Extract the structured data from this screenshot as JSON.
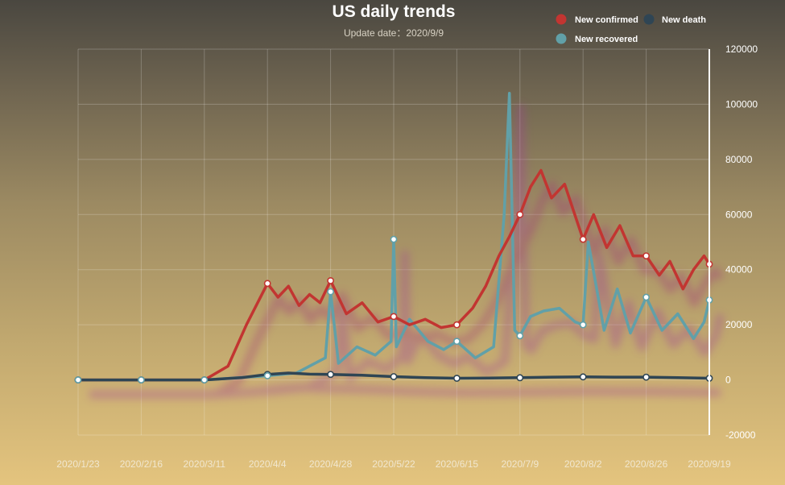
{
  "chart_data": {
    "type": "line",
    "title": "US daily trends",
    "subtitle": "Update date：2020/9/9",
    "x_tick_labels": [
      "2020/1/23",
      "2020/2/16",
      "2020/3/11",
      "2020/4/4",
      "2020/4/28",
      "2020/5/22",
      "2020/6/15",
      "2020/7/9",
      "2020/8/2",
      "2020/8/26",
      "2020/9/19"
    ],
    "y_tick_labels": [
      "120000",
      "100000",
      "80000",
      "60000",
      "40000",
      "20000",
      "0",
      "-20000"
    ],
    "ylim": [
      -20000,
      120000
    ],
    "y_axis_position": "right",
    "grid": true,
    "legend_position": "top-right",
    "series": [
      {
        "name": "New confirmed",
        "color": "#c23531",
        "x": [
          "2020-01-23",
          "2020-02-16",
          "2020-03-11",
          "2020-03-20",
          "2020-03-27",
          "2020-04-04",
          "2020-04-08",
          "2020-04-12",
          "2020-04-16",
          "2020-04-20",
          "2020-04-24",
          "2020-04-28",
          "2020-05-04",
          "2020-05-10",
          "2020-05-16",
          "2020-05-22",
          "2020-05-28",
          "2020-06-03",
          "2020-06-09",
          "2020-06-15",
          "2020-06-21",
          "2020-06-26",
          "2020-07-01",
          "2020-07-05",
          "2020-07-09",
          "2020-07-13",
          "2020-07-17",
          "2020-07-21",
          "2020-07-26",
          "2020-08-02",
          "2020-08-06",
          "2020-08-11",
          "2020-08-16",
          "2020-08-21",
          "2020-08-26",
          "2020-08-31",
          "2020-09-04",
          "2020-09-09",
          "2020-09-13",
          "2020-09-17",
          "2020-09-19"
        ],
        "values": [
          0,
          0,
          0,
          5000,
          20000,
          35000,
          30000,
          34000,
          27000,
          31000,
          28000,
          36000,
          24000,
          28000,
          21000,
          23000,
          20000,
          22000,
          19000,
          20000,
          26000,
          34000,
          45000,
          52000,
          60000,
          70000,
          76000,
          66000,
          71000,
          51000,
          60000,
          48000,
          56000,
          45000,
          45000,
          38000,
          43000,
          33000,
          40000,
          45000,
          42000
        ]
      },
      {
        "name": "New death",
        "color": "#2f4554",
        "x": [
          "2020-01-23",
          "2020-02-16",
          "2020-03-11",
          "2020-03-25",
          "2020-04-04",
          "2020-04-12",
          "2020-04-20",
          "2020-04-28",
          "2020-05-10",
          "2020-05-22",
          "2020-06-03",
          "2020-06-15",
          "2020-06-27",
          "2020-07-09",
          "2020-07-21",
          "2020-08-02",
          "2020-08-14",
          "2020-08-26",
          "2020-09-07",
          "2020-09-19"
        ],
        "values": [
          0,
          0,
          0,
          800,
          2000,
          2500,
          2100,
          2000,
          1700,
          1200,
          800,
          600,
          700,
          800,
          1000,
          1100,
          1000,
          1000,
          800,
          600
        ]
      },
      {
        "name": "New recovered",
        "color": "#61a0a8",
        "x": [
          "2020-01-23",
          "2020-02-16",
          "2020-03-11",
          "2020-03-27",
          "2020-04-04",
          "2020-04-15",
          "2020-04-26",
          "2020-04-28",
          "2020-05-01",
          "2020-05-08",
          "2020-05-15",
          "2020-05-21",
          "2020-05-22",
          "2020-05-23",
          "2020-05-28",
          "2020-06-04",
          "2020-06-10",
          "2020-06-15",
          "2020-06-22",
          "2020-06-29",
          "2020-07-03",
          "2020-07-05",
          "2020-07-07",
          "2020-07-09",
          "2020-07-13",
          "2020-07-18",
          "2020-07-24",
          "2020-07-30",
          "2020-08-02",
          "2020-08-04",
          "2020-08-10",
          "2020-08-15",
          "2020-08-20",
          "2020-08-26",
          "2020-09-01",
          "2020-09-07",
          "2020-09-13",
          "2020-09-17",
          "2020-09-19"
        ],
        "values": [
          0,
          0,
          0,
          1000,
          1500,
          2500,
          8000,
          32000,
          6000,
          12000,
          9000,
          14000,
          51000,
          12000,
          22000,
          14000,
          11000,
          14000,
          8000,
          12000,
          60000,
          104000,
          18000,
          16000,
          23000,
          25000,
          26000,
          21000,
          20000,
          50000,
          18000,
          33000,
          17000,
          30000,
          18000,
          24000,
          15000,
          21000,
          29000
        ]
      }
    ]
  }
}
